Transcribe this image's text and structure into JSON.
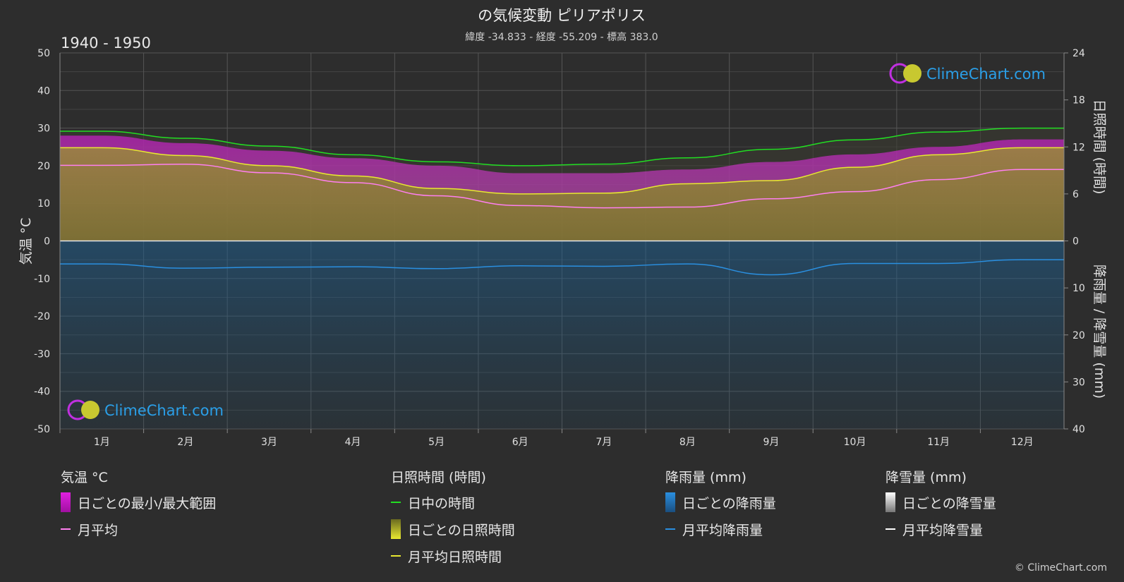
{
  "header": {
    "title": "の気候変動 ピリアポリス",
    "subtitle": "緯度 -34.833 - 経度 -55.209 - 標高 383.0",
    "period": "1940 - 1950"
  },
  "watermark": "ClimeChart.com",
  "copyright": "© ClimeChart.com",
  "colors": {
    "background": "#2d2d2d",
    "temp_range": "#d020d0",
    "temp_mean": "#ff7ff0",
    "daylight": "#22dd22",
    "sunshine_fill": "#a8a820",
    "sunshine_mean": "#e8e830",
    "rain": "#2a7fc0",
    "rain_mean": "#2a8fe0",
    "snow_mean": "#ffffff",
    "brand": "#2a9fe8"
  },
  "legend": {
    "temperature": {
      "title": "気温 °C",
      "items": [
        "日ごとの最小/最大範囲",
        "月平均"
      ]
    },
    "sunshine": {
      "title": "日照時間 (時間)",
      "items": [
        "日中の時間",
        "日ごとの日照時間",
        "月平均日照時間"
      ]
    },
    "rain": {
      "title": "降雨量 (mm)",
      "items": [
        "日ごとの降雨量",
        "月平均降雨量"
      ]
    },
    "snow": {
      "title": "降雪量 (mm)",
      "items": [
        "日ごとの降雪量",
        "月平均降雪量"
      ]
    }
  },
  "chart_data": {
    "type": "line",
    "categories": [
      "1月",
      "2月",
      "3月",
      "4月",
      "5月",
      "6月",
      "7月",
      "8月",
      "9月",
      "10月",
      "11月",
      "12月"
    ],
    "y_left": {
      "label": "気温 °C",
      "range": [
        -50,
        50
      ],
      "ticks": [
        50,
        40,
        30,
        20,
        10,
        0,
        -10,
        -20,
        -30,
        -40,
        -50
      ]
    },
    "y_right_top": {
      "label": "日照時間 (時間)",
      "range": [
        0,
        24
      ],
      "ticks": [
        24,
        18,
        12,
        6,
        0
      ]
    },
    "y_right_bottom": {
      "label": "降雨量 / 降雪量 (mm)",
      "range": [
        0,
        40
      ],
      "ticks": [
        0,
        10,
        20,
        30,
        40
      ]
    },
    "grid": true,
    "series": [
      {
        "name": "日中の時間",
        "axis": "hours",
        "values": [
          14.0,
          13.1,
          12.1,
          11.0,
          10.1,
          9.6,
          9.8,
          10.6,
          11.7,
          12.9,
          13.9,
          14.4
        ]
      },
      {
        "name": "月平均日照時間",
        "axis": "hours",
        "values": [
          11.9,
          10.9,
          9.6,
          8.3,
          6.7,
          6.0,
          6.1,
          7.3,
          7.7,
          9.4,
          11.0,
          11.9
        ]
      },
      {
        "name": "月平均",
        "axis": "temperature",
        "values": [
          20.1,
          20.4,
          18.1,
          15.5,
          12.0,
          9.4,
          8.8,
          9.0,
          11.2,
          13.1,
          16.3,
          19.0
        ]
      },
      {
        "name": "日ごとの最小/最大範囲 (最大)",
        "axis": "temperature",
        "values": [
          28,
          26,
          24,
          22,
          20,
          18,
          18,
          19,
          21,
          23,
          25,
          27
        ]
      },
      {
        "name": "月平均降雨量",
        "axis": "rain",
        "values": [
          4.9,
          5.8,
          5.6,
          5.5,
          5.9,
          5.3,
          5.4,
          4.9,
          7.2,
          4.8,
          4.8,
          4.0
        ]
      },
      {
        "name": "月平均降雪量",
        "axis": "rain",
        "values": [
          0,
          0,
          0,
          0,
          0,
          0,
          0,
          0,
          0,
          0,
          0,
          0
        ]
      }
    ]
  }
}
